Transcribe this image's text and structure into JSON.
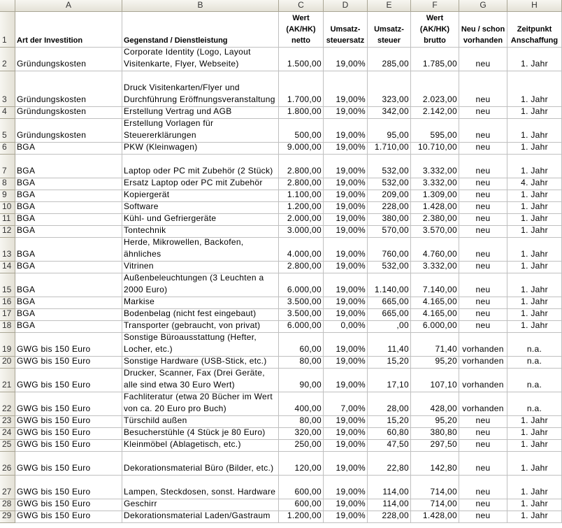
{
  "columns": [
    "A",
    "B",
    "C",
    "D",
    "E",
    "F",
    "G",
    "H"
  ],
  "header": {
    "num": "1",
    "cells": [
      "Art der Investition",
      "Gegenstand / Dienstleistung",
      "Wert (AK/HK) netto",
      "Umsatz-steuersatz",
      "Umsatz-steuer",
      "Wert (AK/HK) brutto",
      "Neu / schon vorhanden",
      "Zeitpunkt Anschaffung"
    ]
  },
  "rows": [
    {
      "num": "2",
      "cells": [
        "Gründungskosten",
        "Corporate Identity (Logo, Layout Visitenkarte, Flyer, Webseite)",
        "1.500,00",
        "19,00%",
        "285,00",
        "1.785,00",
        "neu",
        "1. Jahr"
      ]
    },
    {
      "num": "3",
      "cells": [
        "Gründungskosten",
        "Druck Visitenkarten/Flyer und Durchführung Eröffnungsveranstaltung",
        "1.700,00",
        "19,00%",
        "323,00",
        "2.023,00",
        "neu",
        "1. Jahr"
      ]
    },
    {
      "num": "4",
      "cells": [
        "Gründungskosten",
        "Erstellung Vertrag und AGB",
        "1.800,00",
        "19,00%",
        "342,00",
        "2.142,00",
        "neu",
        "1. Jahr"
      ]
    },
    {
      "num": "5",
      "cells": [
        "Gründungskosten",
        "Erstellung Vorlagen für Steuererklärungen",
        "500,00",
        "19,00%",
        "95,00",
        "595,00",
        "neu",
        "1. Jahr"
      ]
    },
    {
      "num": "6",
      "cells": [
        "BGA",
        "PKW (Kleinwagen)",
        "9.000,00",
        "19,00%",
        "1.710,00",
        "10.710,00",
        "neu",
        "1. Jahr"
      ]
    },
    {
      "num": "7",
      "cells": [
        "BGA",
        "Laptop oder PC mit Zubehör (2 Stück)",
        "2.800,00",
        "19,00%",
        "532,00",
        "3.332,00",
        "neu",
        "1. Jahr"
      ]
    },
    {
      "num": "8",
      "cells": [
        "BGA",
        "Ersatz Laptop oder PC mit Zubehör",
        "2.800,00",
        "19,00%",
        "532,00",
        "3.332,00",
        "neu",
        "4. Jahr"
      ]
    },
    {
      "num": "9",
      "cells": [
        "BGA",
        "Kopiergerät",
        "1.100,00",
        "19,00%",
        "209,00",
        "1.309,00",
        "neu",
        "1. Jahr"
      ]
    },
    {
      "num": "10",
      "cells": [
        "BGA",
        "Software",
        "1.200,00",
        "19,00%",
        "228,00",
        "1.428,00",
        "neu",
        "1. Jahr"
      ]
    },
    {
      "num": "11",
      "cells": [
        "BGA",
        "Kühl- und Gefriergeräte",
        "2.000,00",
        "19,00%",
        "380,00",
        "2.380,00",
        "neu",
        "1. Jahr"
      ]
    },
    {
      "num": "12",
      "cells": [
        "BGA",
        "Tontechnik",
        "3.000,00",
        "19,00%",
        "570,00",
        "3.570,00",
        "neu",
        "1. Jahr"
      ]
    },
    {
      "num": "13",
      "cells": [
        "BGA",
        "Herde, Mikrowellen, Backofen, ähnliches",
        "4.000,00",
        "19,00%",
        "760,00",
        "4.760,00",
        "neu",
        "1. Jahr"
      ]
    },
    {
      "num": "14",
      "cells": [
        "BGA",
        "Vitrinen",
        "2.800,00",
        "19,00%",
        "532,00",
        "3.332,00",
        "neu",
        "1. Jahr"
      ]
    },
    {
      "num": "15",
      "cells": [
        "BGA",
        "Außenbeleuchtungen (3 Leuchten a 2000 Euro)",
        "6.000,00",
        "19,00%",
        "1.140,00",
        "7.140,00",
        "neu",
        "1. Jahr"
      ]
    },
    {
      "num": "16",
      "cells": [
        "BGA",
        "Markise",
        "3.500,00",
        "19,00%",
        "665,00",
        "4.165,00",
        "neu",
        "1. Jahr"
      ]
    },
    {
      "num": "17",
      "cells": [
        "BGA",
        "Bodenbelag (nicht fest eingebaut)",
        "3.500,00",
        "19,00%",
        "665,00",
        "4.165,00",
        "neu",
        "1. Jahr"
      ]
    },
    {
      "num": "18",
      "cells": [
        "BGA",
        "Transporter (gebraucht, von privat)",
        "6.000,00",
        "0,00%",
        ",00",
        "6.000,00",
        "neu",
        "1. Jahr"
      ]
    },
    {
      "num": "19",
      "cells": [
        "GWG bis 150 Euro",
        "Sonstige Büroausstattung (Hefter, Locher, etc.)",
        "60,00",
        "19,00%",
        "11,40",
        "71,40",
        "vorhanden",
        "n.a."
      ]
    },
    {
      "num": "20",
      "cells": [
        "GWG bis 150 Euro",
        "Sonstige Hardware (USB-Stick, etc.)",
        "80,00",
        "19,00%",
        "15,20",
        "95,20",
        "vorhanden",
        "n.a."
      ]
    },
    {
      "num": "21",
      "cells": [
        "GWG bis 150 Euro",
        "Drucker, Scanner, Fax (Drei Geräte, alle sind etwa 30 Euro Wert)",
        "90,00",
        "19,00%",
        "17,10",
        "107,10",
        "vorhanden",
        "n.a."
      ]
    },
    {
      "num": "22",
      "cells": [
        "GWG bis 150 Euro",
        "Fachliteratur (etwa 20 Bücher im Wert von ca. 20 Euro pro Buch)",
        "400,00",
        "7,00%",
        "28,00",
        "428,00",
        "vorhanden",
        "n.a."
      ]
    },
    {
      "num": "23",
      "cells": [
        "GWG bis 150 Euro",
        "Türschild außen",
        "80,00",
        "19,00%",
        "15,20",
        "95,20",
        "neu",
        "1. Jahr"
      ]
    },
    {
      "num": "24",
      "cells": [
        "GWG bis 150 Euro",
        "Besucherstühle (4 Stück je 80 Euro)",
        "320,00",
        "19,00%",
        "60,80",
        "380,80",
        "neu",
        "1. Jahr"
      ]
    },
    {
      "num": "25",
      "cells": [
        "GWG bis 150 Euro",
        "Kleinmöbel (Ablagetisch, etc.)",
        "250,00",
        "19,00%",
        "47,50",
        "297,50",
        "neu",
        "1. Jahr"
      ]
    },
    {
      "num": "26",
      "cells": [
        "GWG bis 150 Euro",
        "Dekorationsmaterial Büro (Bilder, etc.)",
        "120,00",
        "19,00%",
        "22,80",
        "142,80",
        "neu",
        "1. Jahr"
      ]
    },
    {
      "num": "27",
      "cells": [
        "GWG bis 150 Euro",
        "Lampen, Steckdosen, sonst. Hardware",
        "600,00",
        "19,00%",
        "114,00",
        "714,00",
        "neu",
        "1. Jahr"
      ]
    },
    {
      "num": "28",
      "cells": [
        "GWG bis 150 Euro",
        "Geschirr",
        "600,00",
        "19,00%",
        "114,00",
        "714,00",
        "neu",
        "1. Jahr"
      ]
    },
    {
      "num": "29",
      "cells": [
        "GWG bis 150 Euro",
        "Dekorationsmaterial Laden/Gastraum",
        "1.200,00",
        "19,00%",
        "228,00",
        "1.428,00",
        "neu",
        "1. Jahr"
      ]
    }
  ]
}
